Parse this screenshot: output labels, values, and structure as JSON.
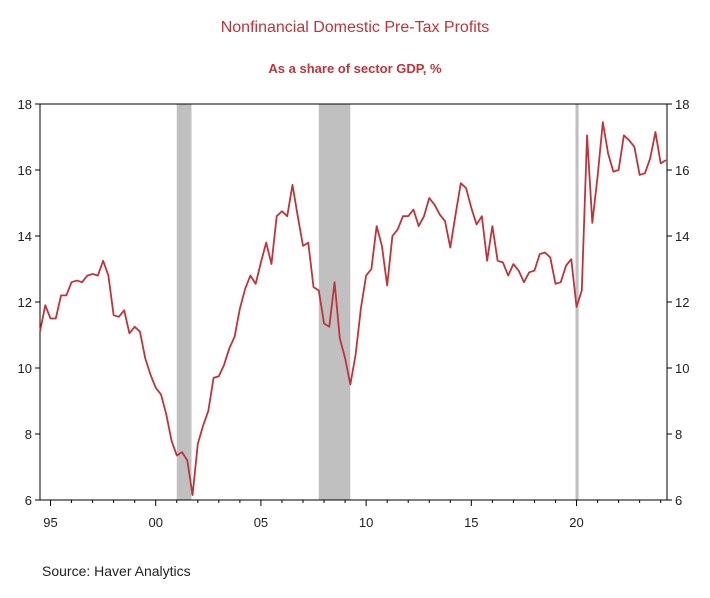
{
  "chart_data": {
    "type": "line",
    "title": "Nonfinancial Domestic Pre-Tax Profits",
    "subtitle": "As a share of sector GDP, %",
    "source": "Source:  Haver Analytics",
    "xlim": [
      1994.5,
      2024.3
    ],
    "ylim": [
      6,
      18
    ],
    "y_ticks": [
      6,
      8,
      10,
      12,
      14,
      16,
      18
    ],
    "y_tick_labels": [
      "6",
      "8",
      "10",
      "12",
      "14",
      "16",
      "18"
    ],
    "x_ticks": [
      1995,
      2000,
      2005,
      2010,
      2015,
      2020
    ],
    "x_tick_labels": [
      "95",
      "00",
      "05",
      "10",
      "15",
      "20"
    ],
    "grid": false,
    "colors": {
      "line": "#c0333a",
      "recession": "#c0c0c0",
      "title": "#c0333a"
    },
    "recessions": [
      [
        2001.0,
        2001.7
      ],
      [
        2007.75,
        2009.25
      ],
      [
        2019.95,
        2020.1
      ]
    ],
    "series": [
      {
        "x": [
          1994.5,
          1994.75,
          1995.0,
          1995.25,
          1995.5,
          1995.75,
          1996.0,
          1996.25,
          1996.5,
          1996.75,
          1997.0,
          1997.25,
          1997.5,
          1997.75,
          1998.0,
          1998.25,
          1998.5,
          1998.75,
          1999.0,
          1999.25,
          1999.5,
          1999.75,
          2000.0,
          2000.25,
          2000.5,
          2000.75,
          2001.0,
          2001.25,
          2001.5,
          2001.75,
          2002.0,
          2002.25,
          2002.5,
          2002.75,
          2003.0,
          2003.25,
          2003.5,
          2003.75,
          2004.0,
          2004.25,
          2004.5,
          2004.75,
          2005.0,
          2005.25,
          2005.5,
          2005.75,
          2006.0,
          2006.25,
          2006.5,
          2006.75,
          2007.0,
          2007.25,
          2007.5,
          2007.75,
          2008.0,
          2008.25,
          2008.5,
          2008.75,
          2009.0,
          2009.25,
          2009.5,
          2009.75,
          2010.0,
          2010.25,
          2010.5,
          2010.75,
          2011.0,
          2011.25,
          2011.5,
          2011.75,
          2012.0,
          2012.25,
          2012.5,
          2012.75,
          2013.0,
          2013.25,
          2013.5,
          2013.75,
          2014.0,
          2014.25,
          2014.5,
          2014.75,
          2015.0,
          2015.25,
          2015.5,
          2015.75,
          2016.0,
          2016.25,
          2016.5,
          2016.75,
          2017.0,
          2017.25,
          2017.5,
          2017.75,
          2018.0,
          2018.25,
          2018.5,
          2018.75,
          2019.0,
          2019.25,
          2019.5,
          2019.75,
          2020.0,
          2020.25,
          2020.5,
          2020.75,
          2021.0,
          2021.25,
          2021.5,
          2021.75,
          2022.0,
          2022.25,
          2022.5,
          2022.75,
          2023.0,
          2023.25,
          2023.5,
          2023.75,
          2024.0,
          2024.25
        ],
        "values": [
          11.1,
          11.9,
          11.5,
          11.5,
          12.2,
          12.2,
          12.6,
          12.65,
          12.6,
          12.8,
          12.85,
          12.8,
          13.25,
          12.8,
          11.6,
          11.55,
          11.75,
          11.05,
          11.25,
          11.1,
          10.3,
          9.8,
          9.4,
          9.2,
          8.6,
          7.8,
          7.35,
          7.45,
          7.2,
          6.15,
          7.7,
          8.25,
          8.7,
          9.7,
          9.75,
          10.1,
          10.6,
          10.95,
          11.8,
          12.4,
          12.8,
          12.55,
          13.2,
          13.8,
          13.15,
          14.6,
          14.75,
          14.6,
          15.55,
          14.6,
          13.7,
          13.8,
          12.45,
          12.35,
          11.35,
          11.25,
          12.6,
          10.9,
          10.3,
          9.5,
          10.4,
          11.8,
          12.8,
          13.0,
          14.3,
          13.7,
          12.5,
          14.0,
          14.2,
          14.6,
          14.6,
          14.8,
          14.3,
          14.6,
          15.15,
          14.95,
          14.65,
          14.45,
          13.65,
          14.65,
          15.6,
          15.45,
          14.85,
          14.35,
          14.6,
          13.25,
          14.3,
          13.25,
          13.2,
          12.8,
          13.15,
          12.95,
          12.6,
          12.9,
          12.95,
          13.45,
          13.5,
          13.35,
          12.55,
          12.6,
          13.1,
          13.3,
          11.85,
          12.35,
          17.05,
          14.4,
          15.8,
          17.45,
          16.5,
          15.95,
          16.0,
          17.05,
          16.9,
          16.7,
          15.85,
          15.9,
          16.35,
          17.15,
          16.2,
          16.3
        ]
      }
    ]
  }
}
